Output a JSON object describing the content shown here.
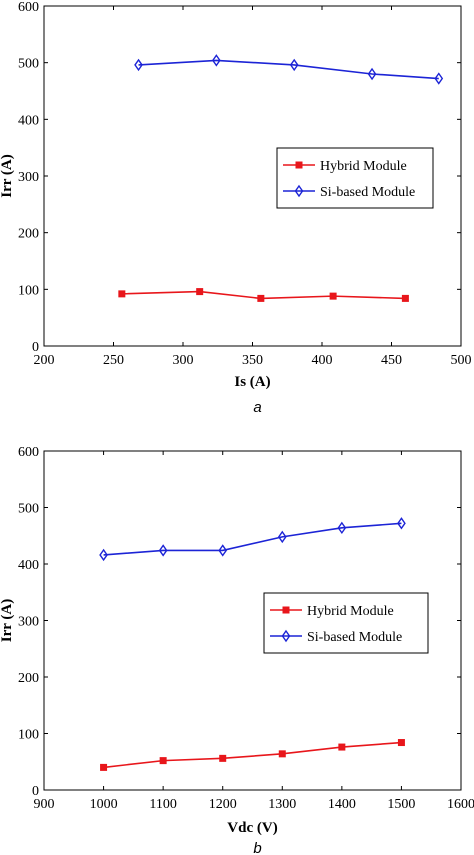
{
  "chart_data": [
    {
      "type": "line",
      "caption": "a",
      "xlabel": "Is (A)",
      "ylabel": "Irr (A)",
      "xlim": [
        200,
        500
      ],
      "ylim": [
        0,
        600
      ],
      "xticks": [
        200,
        250,
        300,
        350,
        400,
        450,
        500
      ],
      "yticks": [
        0,
        100,
        200,
        300,
        400,
        500,
        600
      ],
      "legend_position": "middle-right",
      "grid": false,
      "series": [
        {
          "name": "Hybrid Module",
          "color": "#e8161b",
          "marker": "square",
          "x": [
            256,
            312,
            356,
            408,
            460
          ],
          "y": [
            92,
            96,
            84,
            88,
            84
          ]
        },
        {
          "name": "Si-based Module",
          "color": "#1c24d6",
          "marker": "diamond",
          "x": [
            268,
            324,
            380,
            436,
            484
          ],
          "y": [
            496,
            504,
            496,
            480,
            472
          ]
        }
      ]
    },
    {
      "type": "line",
      "caption": "b",
      "xlabel": "Vdc (V)",
      "ylabel": "Irr (A)",
      "xlim": [
        900,
        1600
      ],
      "ylim": [
        0,
        600
      ],
      "xticks": [
        900,
        1000,
        1100,
        1200,
        1300,
        1400,
        1500,
        1600
      ],
      "yticks": [
        0,
        100,
        200,
        300,
        400,
        500,
        600
      ],
      "legend_position": "middle-right",
      "grid": false,
      "series": [
        {
          "name": "Hybrid Module",
          "color": "#e8161b",
          "marker": "square",
          "x": [
            1000,
            1100,
            1200,
            1300,
            1400,
            1500
          ],
          "y": [
            40,
            52,
            56,
            64,
            76,
            84
          ]
        },
        {
          "name": "Si-based Module",
          "color": "#1c24d6",
          "marker": "diamond",
          "x": [
            1000,
            1100,
            1200,
            1300,
            1400,
            1500
          ],
          "y": [
            416,
            424,
            424,
            448,
            464,
            472
          ]
        }
      ]
    }
  ]
}
